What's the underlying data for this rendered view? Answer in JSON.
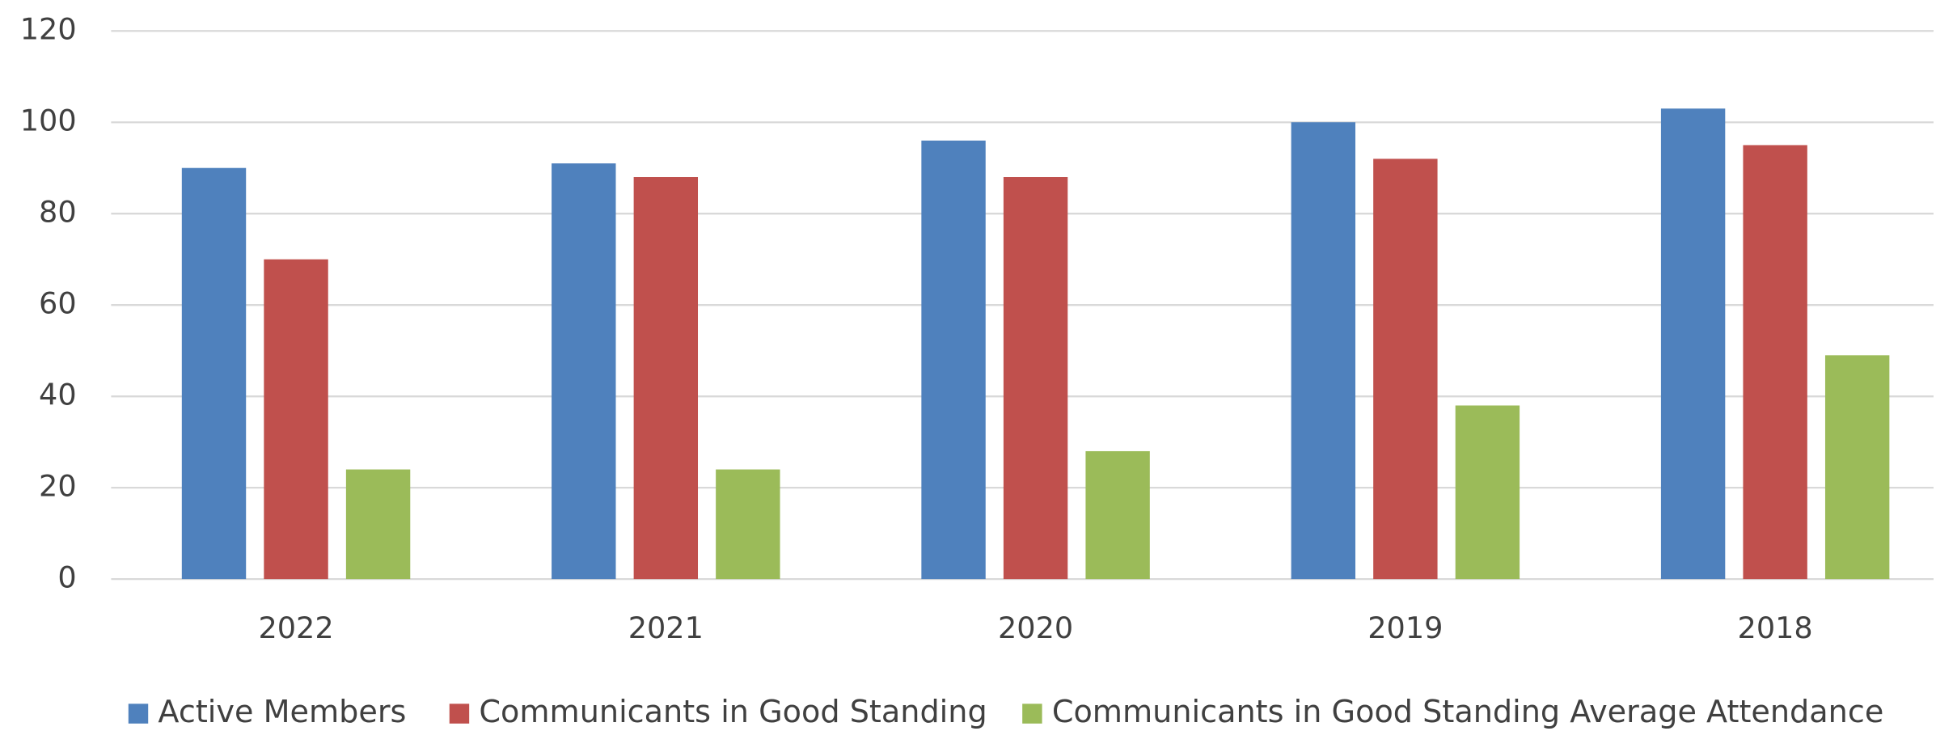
{
  "chart_data": {
    "type": "bar",
    "categories": [
      "2022",
      "2021",
      "2020",
      "2019",
      "2018"
    ],
    "series": [
      {
        "name": "Active Members",
        "color": "#4f81bd",
        "values": [
          90,
          91,
          96,
          100,
          103
        ]
      },
      {
        "name": "Communicants in Good Standing",
        "color": "#c0504d",
        "values": [
          70,
          88,
          88,
          92,
          95
        ]
      },
      {
        "name": "Communicants in Good Standing Average Attendance",
        "color": "#9bbb59",
        "values": [
          24,
          24,
          28,
          38,
          49
        ]
      }
    ],
    "ylim": [
      0,
      120
    ],
    "yticks": [
      0,
      20,
      40,
      60,
      80,
      100,
      120
    ],
    "grid": true,
    "legend": "bottom"
  }
}
